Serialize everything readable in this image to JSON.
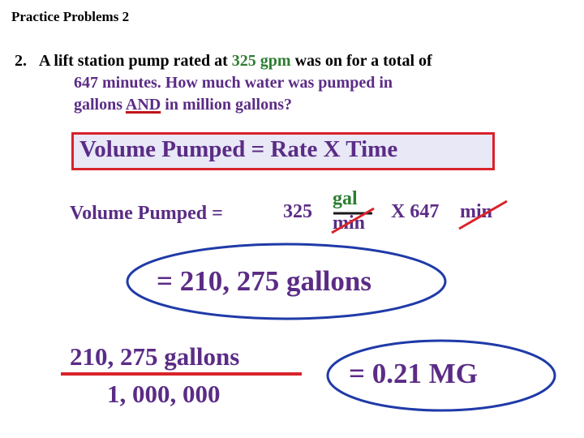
{
  "slide": {
    "title": "Practice Problems 2",
    "problem": {
      "number": "2.",
      "line1_a": "A lift station pump rated at ",
      "line1_rate": "325 gpm",
      "line1_b": " was on for a total of",
      "line2": "647 minutes.  How much water was pumped in",
      "line3_a": "gallons ",
      "line3_and": "AND",
      "line3_b": " in million gallons?"
    },
    "formula": "Volume Pumped  =  Rate  X  Time",
    "calculation": {
      "label": "Volume Pumped  =",
      "rate_value": "325",
      "rate_unit_num": "gal",
      "rate_unit_den": "min",
      "times_text": "X  647",
      "time_unit": "min"
    },
    "result_gallons": "=   210, 275 gallons",
    "conversion": {
      "numerator": "210, 275 gallons",
      "denominator": "1, 000, 000"
    },
    "result_mg": "=  0.21 MG"
  },
  "colors": {
    "accent_red": "#d8232a",
    "text_purple": "#5b2c86",
    "text_green": "#2e7d32",
    "box_fill": "#e8e8f6",
    "ellipse_blue": "#1f3aa8"
  }
}
